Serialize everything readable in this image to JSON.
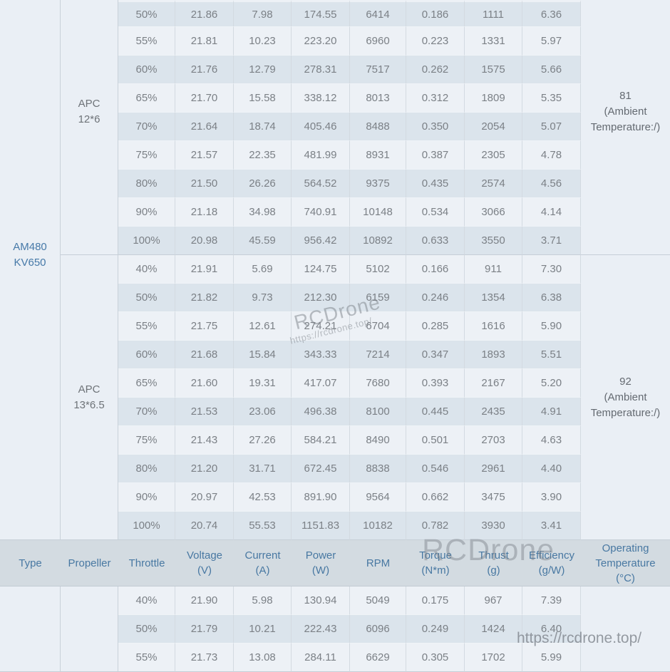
{
  "colors": {
    "row_dark": "#dbe4ec",
    "row_light": "#edf1f6",
    "merged_cell_bg": "#eaeff5",
    "header_bg": "#d3dbe1",
    "header_text": "#4878a2",
    "data_text": "#7b8086",
    "type_text": "#4679a8"
  },
  "watermarks": {
    "brand": "RCDrone",
    "url": "https://rcdrone.top/"
  },
  "table": {
    "type_label_lines": [
      "AM480",
      "KV650"
    ],
    "field_names": [
      "throttle",
      "voltage",
      "current",
      "power",
      "rpm",
      "torque",
      "thrust",
      "efficiency"
    ],
    "columns": [
      {
        "key": "type",
        "lines": [
          "Type"
        ]
      },
      {
        "key": "propeller",
        "lines": [
          "Propeller"
        ]
      },
      {
        "key": "throttle",
        "lines": [
          "Throttle"
        ]
      },
      {
        "key": "voltage",
        "lines": [
          "Voltage",
          "(V)"
        ]
      },
      {
        "key": "current",
        "lines": [
          "Current",
          "(A)"
        ]
      },
      {
        "key": "power",
        "lines": [
          "Power",
          "(W)"
        ]
      },
      {
        "key": "rpm",
        "lines": [
          "RPM"
        ]
      },
      {
        "key": "torque",
        "lines": [
          "Torque",
          "(N*m)"
        ]
      },
      {
        "key": "thrust",
        "lines": [
          "Thrust",
          "(g)"
        ]
      },
      {
        "key": "efficiency",
        "lines": [
          "Efficiency",
          "(g/W)"
        ]
      },
      {
        "key": "operating-temperature",
        "lines": [
          "Operating",
          "Temperature",
          "(°C)"
        ]
      }
    ],
    "sections": [
      {
        "propeller_lines": [
          "APC",
          "12*6"
        ],
        "temperature_lines": [
          "81",
          "(Ambient",
          "Temperature:/)"
        ],
        "rows": [
          {
            "dark": true,
            "cells": [
              "50%",
              "21.86",
              "7.98",
              "174.55",
              "6414",
              "0.186",
              "1111",
              "6.36"
            ]
          },
          {
            "dark": false,
            "cells": [
              "55%",
              "21.81",
              "10.23",
              "223.20",
              "6960",
              "0.223",
              "1331",
              "5.97"
            ]
          },
          {
            "dark": true,
            "cells": [
              "60%",
              "21.76",
              "12.79",
              "278.31",
              "7517",
              "0.262",
              "1575",
              "5.66"
            ]
          },
          {
            "dark": false,
            "cells": [
              "65%",
              "21.70",
              "15.58",
              "338.12",
              "8013",
              "0.312",
              "1809",
              "5.35"
            ]
          },
          {
            "dark": true,
            "cells": [
              "70%",
              "21.64",
              "18.74",
              "405.46",
              "8488",
              "0.350",
              "2054",
              "5.07"
            ]
          },
          {
            "dark": false,
            "cells": [
              "75%",
              "21.57",
              "22.35",
              "481.99",
              "8931",
              "0.387",
              "2305",
              "4.78"
            ]
          },
          {
            "dark": true,
            "cells": [
              "80%",
              "21.50",
              "26.26",
              "564.52",
              "9375",
              "0.435",
              "2574",
              "4.56"
            ]
          },
          {
            "dark": false,
            "cells": [
              "90%",
              "21.18",
              "34.98",
              "740.91",
              "10148",
              "0.534",
              "3066",
              "4.14"
            ]
          },
          {
            "dark": true,
            "cells": [
              "100%",
              "20.98",
              "45.59",
              "956.42",
              "10892",
              "0.633",
              "3550",
              "3.71"
            ]
          }
        ]
      },
      {
        "propeller_lines": [
          "APC",
          "13*6.5"
        ],
        "temperature_lines": [
          "92",
          "(Ambient",
          "Temperature:/)"
        ],
        "rows": [
          {
            "dark": false,
            "cells": [
              "40%",
              "21.91",
              "5.69",
              "124.75",
              "5102",
              "0.166",
              "911",
              "7.30"
            ]
          },
          {
            "dark": true,
            "cells": [
              "50%",
              "21.82",
              "9.73",
              "212.30",
              "6159",
              "0.246",
              "1354",
              "6.38"
            ]
          },
          {
            "dark": false,
            "cells": [
              "55%",
              "21.75",
              "12.61",
              "274.21",
              "6704",
              "0.285",
              "1616",
              "5.90"
            ]
          },
          {
            "dark": true,
            "cells": [
              "60%",
              "21.68",
              "15.84",
              "343.33",
              "7214",
              "0.347",
              "1893",
              "5.51"
            ]
          },
          {
            "dark": false,
            "cells": [
              "65%",
              "21.60",
              "19.31",
              "417.07",
              "7680",
              "0.393",
              "2167",
              "5.20"
            ]
          },
          {
            "dark": true,
            "cells": [
              "70%",
              "21.53",
              "23.06",
              "496.38",
              "8100",
              "0.445",
              "2435",
              "4.91"
            ]
          },
          {
            "dark": false,
            "cells": [
              "75%",
              "21.43",
              "27.26",
              "584.21",
              "8490",
              "0.501",
              "2703",
              "4.63"
            ]
          },
          {
            "dark": true,
            "cells": [
              "80%",
              "21.20",
              "31.71",
              "672.45",
              "8838",
              "0.546",
              "2961",
              "4.40"
            ]
          },
          {
            "dark": false,
            "cells": [
              "90%",
              "20.97",
              "42.53",
              "891.90",
              "9564",
              "0.662",
              "3475",
              "3.90"
            ]
          },
          {
            "dark": true,
            "cells": [
              "100%",
              "20.74",
              "55.53",
              "1151.83",
              "10182",
              "0.782",
              "3930",
              "3.41"
            ]
          }
        ]
      },
      {
        "propeller_lines": [],
        "temperature_lines": [],
        "rows": [
          {
            "dark": false,
            "cells": [
              "40%",
              "21.90",
              "5.98",
              "130.94",
              "5049",
              "0.175",
              "967",
              "7.39"
            ]
          },
          {
            "dark": true,
            "cells": [
              "50%",
              "21.79",
              "10.21",
              "222.43",
              "6096",
              "0.249",
              "1424",
              "6.40"
            ]
          },
          {
            "dark": false,
            "cells": [
              "55%",
              "21.73",
              "13.08",
              "284.11",
              "6629",
              "0.305",
              "1702",
              "5.99"
            ]
          }
        ]
      }
    ]
  }
}
